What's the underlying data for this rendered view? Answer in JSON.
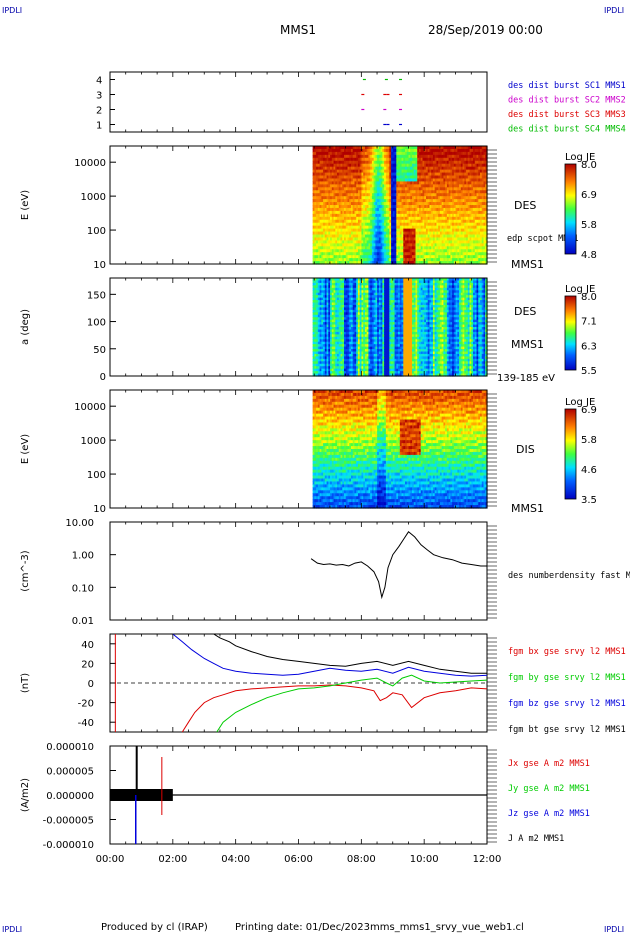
{
  "header": {
    "corner_label": "IPDLI",
    "spacecraft": "MMS1",
    "date": "28/Sep/2019 00:00"
  },
  "footer": {
    "produced_by": "Produced by cl (IRAP)",
    "printing_date": "Printing date: 01/Dec/2023",
    "file": "mms_mms1_srvy_vue_web1.cl"
  },
  "colors": {
    "mms1": "#0000cc",
    "mms2": "#cc00cc",
    "mms3": "#dd0000",
    "mms4": "#00bb00",
    "bx": "#dd0000",
    "by": "#00cc00",
    "bz": "#0000dd",
    "bt": "#000000"
  },
  "chart_data": [
    {
      "type": "scatter",
      "name": "burst-availability",
      "yticks": [
        "1",
        "2",
        "3",
        "4"
      ],
      "ylim": [
        0.5,
        4.5
      ],
      "legend": [
        "des dist burst SC1 MMS1",
        "des dist burst SC2 MMS2",
        "des dist burst SC3 MMS3",
        "des dist burst SC4 MMS4"
      ],
      "marks": [
        {
          "sc": 4,
          "t": [
            8.05,
            8.75,
            9.2
          ]
        },
        {
          "sc": 3,
          "t": [
            8.0,
            8.7,
            8.8,
            9.2
          ]
        },
        {
          "sc": 2,
          "t": [
            8.0,
            8.7,
            9.2
          ]
        },
        {
          "sc": 1,
          "t": [
            8.7,
            8.8,
            9.2
          ]
        }
      ]
    },
    {
      "type": "heatmap",
      "name": "des-energy-spectrogram",
      "ylabel": "E (eV)",
      "yscale": "log",
      "ylim": [
        10,
        30000
      ],
      "yticks": [
        "10",
        "100",
        "1000",
        "10000"
      ],
      "right_labels": [
        "DES",
        "edp scpot MMS1",
        "MMS1"
      ],
      "colorbar": {
        "title": "Log JE",
        "ticks": [
          "4.8",
          "5.8",
          "6.9",
          "8.0"
        ]
      }
    },
    {
      "type": "heatmap",
      "name": "des-pitch-angle",
      "ylabel": "a (deg)",
      "ylim": [
        0,
        180
      ],
      "yticks": [
        "0",
        "50",
        "100",
        "150"
      ],
      "right_labels": [
        "DES",
        "MMS1",
        "139-185 eV"
      ],
      "colorbar": {
        "title": "Log JE",
        "ticks": [
          "5.5",
          "6.3",
          "7.1",
          "8.0"
        ]
      }
    },
    {
      "type": "heatmap",
      "name": "dis-energy-spectrogram",
      "ylabel": "E (eV)",
      "yscale": "log",
      "ylim": [
        10,
        30000
      ],
      "yticks": [
        "10",
        "100",
        "1000",
        "10000"
      ],
      "right_labels": [
        "DIS",
        "MMS1"
      ],
      "colorbar": {
        "title": "Log JE",
        "ticks": [
          "3.5",
          "4.6",
          "5.8",
          "6.9"
        ]
      }
    },
    {
      "type": "line",
      "name": "electron-density",
      "ylabel": "(cm^-3)",
      "yscale": "log",
      "ylim": [
        0.01,
        10
      ],
      "yticks": [
        "0.01",
        "0.10",
        "1.00",
        "10.00"
      ],
      "legend": [
        "des numberdensity fast M"
      ],
      "series": [
        {
          "name": "des numberdensity fast M",
          "x": [
            6.4,
            6.6,
            6.8,
            7.0,
            7.2,
            7.4,
            7.6,
            7.8,
            8.0,
            8.2,
            8.4,
            8.55,
            8.65,
            8.75,
            8.85,
            9.0,
            9.2,
            9.35,
            9.5,
            9.7,
            9.9,
            10.1,
            10.3,
            10.6,
            10.9,
            11.2,
            11.5,
            11.8,
            12.0
          ],
          "values": [
            0.75,
            0.55,
            0.5,
            0.52,
            0.48,
            0.5,
            0.45,
            0.55,
            0.6,
            0.45,
            0.3,
            0.15,
            0.05,
            0.1,
            0.4,
            1.0,
            1.8,
            3.0,
            5.0,
            3.5,
            2.0,
            1.4,
            1.0,
            0.8,
            0.7,
            0.55,
            0.5,
            0.45,
            0.45
          ]
        }
      ]
    },
    {
      "type": "line",
      "name": "magnetic-field",
      "ylabel": "(nT)",
      "ylim": [
        -50,
        50
      ],
      "yticks": [
        "-40",
        "-20",
        "0",
        "20",
        "40"
      ],
      "legend": [
        "fgm bx gse srvy l2 MMS1",
        "fgm by gse srvy l2 MMS1",
        "fgm bz gse srvy l2 MMS1",
        "fgm bt gse srvy l2 MMS1"
      ],
      "series": [
        {
          "name": "fgm bx gse srvy l2 MMS1",
          "x": [
            2.3,
            2.5,
            2.7,
            3.0,
            3.3,
            3.6,
            4.0,
            4.5,
            5.0,
            5.5,
            6.0,
            6.5,
            7.0,
            7.5,
            8.0,
            8.4,
            8.6,
            8.8,
            9.0,
            9.3,
            9.6,
            10.0,
            10.5,
            11.0,
            11.5,
            12.0
          ],
          "values": [
            -50,
            -40,
            -30,
            -20,
            -15,
            -12,
            -8,
            -6,
            -5,
            -4,
            -3,
            -3,
            -2,
            -3,
            -5,
            -8,
            -18,
            -15,
            -10,
            -12,
            -25,
            -15,
            -10,
            -8,
            -5,
            -6
          ]
        },
        {
          "name": "fgm by gse srvy l2 MMS1",
          "x": [
            3.4,
            3.6,
            4.0,
            4.5,
            5.0,
            5.5,
            6.0,
            6.5,
            7.0,
            7.5,
            8.0,
            8.5,
            8.8,
            9.0,
            9.3,
            9.6,
            10.0,
            10.5,
            11.0,
            11.5,
            12.0
          ],
          "values": [
            -50,
            -40,
            -30,
            -22,
            -15,
            -10,
            -6,
            -5,
            -3,
            0,
            3,
            5,
            0,
            -3,
            5,
            8,
            2,
            0,
            1,
            2,
            3
          ]
        },
        {
          "name": "fgm bz gse srvy l2 MMS1",
          "x": [
            2.0,
            2.3,
            2.6,
            3.0,
            3.3,
            3.6,
            4.0,
            4.5,
            5.0,
            5.5,
            6.0,
            6.5,
            7.0,
            7.5,
            8.0,
            8.5,
            9.0,
            9.5,
            10.0,
            10.5,
            11.0,
            11.5,
            12.0
          ],
          "values": [
            50,
            42,
            34,
            25,
            20,
            15,
            12,
            10,
            9,
            8,
            9,
            12,
            15,
            13,
            12,
            14,
            10,
            16,
            12,
            10,
            8,
            7,
            8
          ]
        },
        {
          "name": "fgm bt gse srvy l2 MMS1",
          "x": [
            3.3,
            3.5,
            3.8,
            4.0,
            4.5,
            5.0,
            5.5,
            6.0,
            6.5,
            7.0,
            7.5,
            8.0,
            8.5,
            9.0,
            9.5,
            10.0,
            10.5,
            11.0,
            11.5,
            12.0
          ],
          "values": [
            50,
            46,
            42,
            38,
            32,
            27,
            24,
            22,
            20,
            18,
            17,
            20,
            22,
            18,
            22,
            18,
            14,
            12,
            10,
            10
          ]
        }
      ]
    },
    {
      "type": "line",
      "name": "current-density",
      "ylabel": "(A/m2)",
      "ylim": [
        -1e-05,
        1e-05
      ],
      "yticks": [
        "-0.000010",
        "-0.000005",
        "0.000000",
        "0.000005",
        "0.000010"
      ],
      "legend": [
        "Jx gse A m2 MMS1",
        "Jy gse A m2 MMS1",
        "Jz gse A m2 MMS1",
        "J A m2 MMS1"
      ]
    }
  ],
  "time_axis": {
    "xlim": [
      0,
      12
    ],
    "ticks": [
      "00:00",
      "02:00",
      "04:00",
      "06:00",
      "08:00",
      "10:00",
      "12:00"
    ]
  }
}
